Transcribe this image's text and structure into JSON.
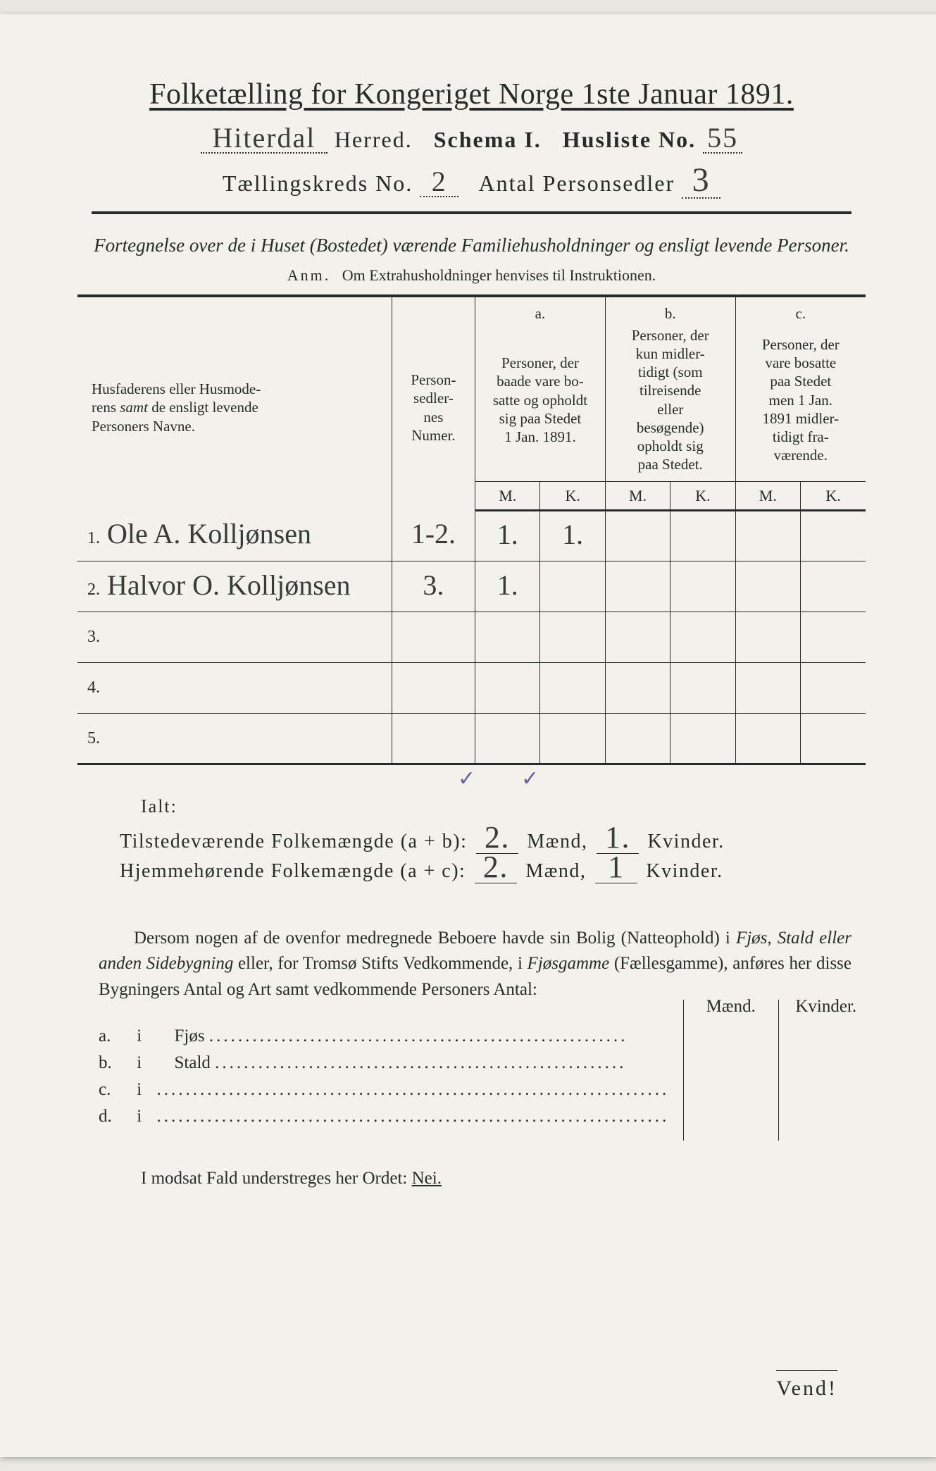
{
  "header": {
    "main_title": "Folketælling for Kongeriget Norge 1ste Januar 1891.",
    "herred_value": "Hiterdal",
    "herred_label": "Herred.",
    "schema_label": "Schema I.",
    "husliste_label": "Husliste No.",
    "husliste_value": "55",
    "kreds_label": "Tællingskreds No.",
    "kreds_value": "2",
    "antal_label": "Antal Personsedler",
    "antal_value": "3"
  },
  "subtitle": "Fortegnelse over de i Huset (Bostedet) værende Familiehusholdninger og ensligt levende Personer.",
  "anm": {
    "label": "Anm.",
    "text": "Om Extrahusholdninger henvises til Instruktionen."
  },
  "table": {
    "col_names": "Husfaderens eller Husmoderens samt de ensligt levende Personers Navne.",
    "col_numer": "Person-sedler-nes Numer.",
    "col_a_hdr": "a.",
    "col_a": "Personer, der baade vare bosatte og opholdt sig paa Stedet 1 Jan. 1891.",
    "col_b_hdr": "b.",
    "col_b": "Personer, der kun midler-tidigt (som tilreisende eller besøgende) opholdt sig paa Stedet.",
    "col_c_hdr": "c.",
    "col_c": "Personer, der vare bosatte paa Stedet men 1 Jan. 1891 midler-tidigt fra-værende.",
    "m": "M.",
    "k": "K.",
    "rows": [
      {
        "n": "1.",
        "name": "Ole A. Kolljønsen",
        "numer": "1-2.",
        "a_m": "1.",
        "a_k": "1.",
        "b_m": "",
        "b_k": "",
        "c_m": "",
        "c_k": ""
      },
      {
        "n": "2.",
        "name": "Halvor O. Kolljønsen",
        "numer": "3.",
        "a_m": "1.",
        "a_k": "",
        "b_m": "",
        "b_k": "",
        "c_m": "",
        "c_k": ""
      },
      {
        "n": "3.",
        "name": "",
        "numer": "",
        "a_m": "",
        "a_k": "",
        "b_m": "",
        "b_k": "",
        "c_m": "",
        "c_k": ""
      },
      {
        "n": "4.",
        "name": "",
        "numer": "",
        "a_m": "",
        "a_k": "",
        "b_m": "",
        "b_k": "",
        "c_m": "",
        "c_k": ""
      },
      {
        "n": "5.",
        "name": "",
        "numer": "",
        "a_m": "",
        "a_k": "",
        "b_m": "",
        "b_k": "",
        "c_m": "",
        "c_k": ""
      }
    ]
  },
  "checks": {
    "mark": "✓"
  },
  "ialt": "Ialt:",
  "totals": {
    "line1_label": "Tilstedeværende Folkemængde (a + b):",
    "line2_label": "Hjemmehørende Folkemængde (a + c):",
    "maend": "Mænd,",
    "kvinder": "Kvinder.",
    "t_m": "2.",
    "t_k": "1.",
    "h_m": "2.",
    "h_k": "1"
  },
  "paragraph": "Dersom nogen af de ovenfor medregnede Beboere havde sin Bolig (Natteophold) i Fjøs, Stald eller anden Sidebygning eller, for Tromsø Stifts Vedkommende, i Fjøsgamme (Fællesgamme), anføres her disse Bygningers Antal og Art samt vedkommende Personers Antal:",
  "lower": {
    "a": "a.",
    "b": "b.",
    "c": "c.",
    "d": "d.",
    "i": "i",
    "fjos": "Fjøs",
    "stald": "Stald",
    "maend": "Mænd.",
    "kvinder": "Kvinder."
  },
  "last_line": {
    "text": "I modsat Fald understreges her Ordet:",
    "nei": "Nei."
  },
  "vend": "Vend!"
}
